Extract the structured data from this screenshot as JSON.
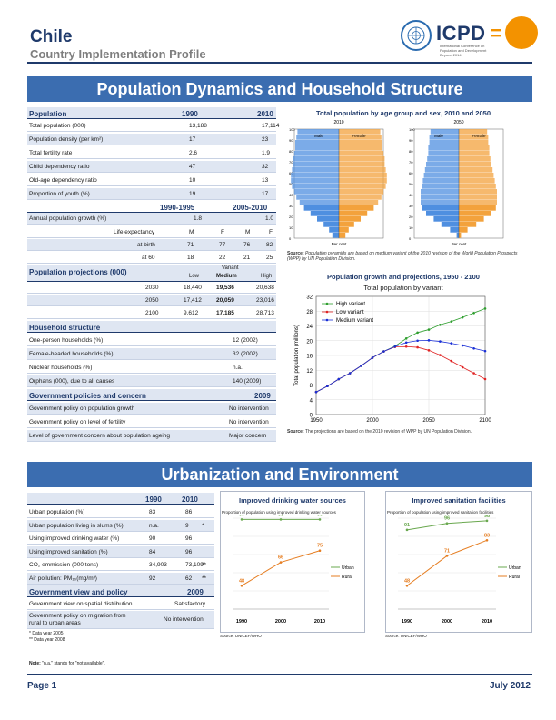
{
  "header": {
    "country": "Chile",
    "subtitle": "Country Implementation Profile",
    "logo_text": "ICPD",
    "logo_sub": "International Conference on Population and Development Beyond 2014"
  },
  "section1": {
    "title": "Population Dynamics and Household Structure"
  },
  "population_table": {
    "header": [
      "Population",
      "1990",
      "2010"
    ],
    "rows": [
      [
        "Total population (000)",
        "13,188",
        "17,114"
      ],
      [
        "Population density (per km²)",
        "17",
        "23"
      ],
      [
        "Total fertility rate",
        "2.6",
        "1.9"
      ],
      [
        "Child dependency ratio",
        "47",
        "32"
      ],
      [
        "Old-age dependency ratio",
        "10",
        "13"
      ],
      [
        "Proportion of youth (%)",
        "19",
        "17"
      ]
    ],
    "period_header": [
      "1990-1995",
      "2005-2010"
    ],
    "growth_row": [
      "Annual population growth (%)",
      "1.8",
      "1.0"
    ],
    "le_header": [
      "Life expectancy",
      "M",
      "F",
      "M",
      "F"
    ],
    "le_birth": [
      "at birth",
      "71",
      "77",
      "76",
      "82"
    ],
    "le_60": [
      "at 60",
      "18",
      "22",
      "21",
      "25"
    ]
  },
  "projections": {
    "title": "Population projections (000)",
    "variant_label": "Variant",
    "cols": [
      "Low",
      "Medium",
      "High"
    ],
    "rows": [
      [
        "2030",
        "18,440",
        "19,536",
        "20,638"
      ],
      [
        "2050",
        "17,412",
        "20,059",
        "23,016"
      ],
      [
        "2100",
        "9,612",
        "17,185",
        "28,713"
      ]
    ]
  },
  "household": {
    "title": "Household structure",
    "rows": [
      [
        "One-person households (%)",
        "12 (2002)"
      ],
      [
        "Female-headed households (%)",
        "32 (2002)"
      ],
      [
        "Nuclear households (%)",
        "n.a."
      ],
      [
        "Orphans (000), due to all causes",
        "140 (2009)"
      ]
    ]
  },
  "policies": {
    "title": "Government policies and concern",
    "year": "2009",
    "rows": [
      [
        "Government policy on population growth",
        "No intervention"
      ],
      [
        "Government policy on level of fertility",
        "No intervention"
      ],
      [
        "Level of government concern about population ageing",
        "Major concern"
      ]
    ]
  },
  "pyramid": {
    "title": "Total population by age group and sex, 2010 and 2050",
    "years": [
      "2010",
      "2050"
    ],
    "male": "Male",
    "female": "Female",
    "yticks": [
      "100",
      "90",
      "80",
      "70",
      "60",
      "50",
      "40",
      "30",
      "20",
      "10",
      "0"
    ],
    "xlabel": "Per cent",
    "source_bold": "Source:",
    "source": "Population pyramids are based on medium variant of the 2010 revision of the World Population Prospects (WPP) by UN Population Division.",
    "male_color": "#4f8fe0",
    "female_color": "#f3a23c",
    "shares_2010": [
      0.6,
      0.9,
      1.4,
      2.0,
      2.6,
      3.2,
      3.6,
      3.9,
      4.1,
      4.3,
      4.4,
      4.4,
      4.3,
      4.2,
      4.2,
      4.1,
      4.0,
      4.0,
      3.9,
      3.8
    ],
    "shares_2050": [
      0.2,
      0.8,
      1.6,
      2.3,
      3.0,
      3.4,
      3.5,
      3.5,
      3.5,
      3.4,
      3.3,
      3.2,
      3.1,
      3.0,
      2.9,
      2.8,
      2.8,
      2.7,
      2.7,
      2.6
    ]
  },
  "growth_chart": {
    "title": "Population growth and projections, 1950 - 2100",
    "subtitle": "Total population by variant",
    "ylabel": "Total population (millions)",
    "source_bold": "Source:",
    "source": "The projections are based on the 2010 revision of WPP by UN Population Division."
  },
  "chart_data": {
    "type": "line",
    "x": [
      1950,
      1960,
      1970,
      1980,
      1990,
      2000,
      2010,
      2020,
      2030,
      2040,
      2050,
      2060,
      2070,
      2080,
      2090,
      2100
    ],
    "series": [
      {
        "name": "High variant",
        "color": "#2e9e2e",
        "values": [
          6.1,
          7.7,
          9.6,
          11.2,
          13.2,
          15.4,
          17.1,
          18.5,
          20.6,
          22.2,
          23.0,
          24.3,
          25.2,
          26.3,
          27.5,
          28.7
        ]
      },
      {
        "name": "Low variant",
        "color": "#e02424",
        "values": [
          6.1,
          7.7,
          9.6,
          11.2,
          13.2,
          15.4,
          17.1,
          18.3,
          18.4,
          18.2,
          17.4,
          16.1,
          14.5,
          12.8,
          11.2,
          9.6
        ]
      },
      {
        "name": "Medium variant",
        "color": "#1a2fd6",
        "values": [
          6.1,
          7.7,
          9.6,
          11.2,
          13.2,
          15.4,
          17.1,
          18.4,
          19.5,
          20.0,
          20.1,
          19.8,
          19.3,
          18.7,
          17.9,
          17.2
        ]
      }
    ],
    "xticks": [
      "1950",
      "2000",
      "2050",
      "2100"
    ],
    "yticks": [
      "0",
      "4",
      "8",
      "12",
      "16",
      "20",
      "24",
      "28",
      "32"
    ],
    "ylim": [
      0,
      32
    ],
    "xlim": [
      1950,
      2100
    ]
  },
  "section2": {
    "title": "Urbanization and Environment"
  },
  "urban_table": {
    "header": [
      "",
      "1990",
      "2010"
    ],
    "rows": [
      [
        "Urban population (%)",
        "83",
        "86",
        ""
      ],
      [
        "Urban population living in slums (%)",
        "n.a.",
        "9",
        "*"
      ],
      [
        "Using improved drinking water (%)",
        "90",
        "96",
        ""
      ],
      [
        "Using improved sanitation (%)",
        "84",
        "96",
        ""
      ],
      [
        "CO₂ emmission (000 tons)",
        "34,903",
        "73,109",
        "**"
      ],
      [
        "Air pollution: PM₁₀(mg/m³)",
        "92",
        "62",
        "**"
      ]
    ],
    "view_title": "Government view and policy",
    "view_year": "2009",
    "view_rows": [
      [
        "Government view on spatial distribution",
        "Satisfactory"
      ],
      [
        "Government policy on migration from rural to urban areas",
        "No intervention"
      ]
    ],
    "notes": [
      "* Data year 2005",
      "** Data year 2008"
    ],
    "note_bold": "Note:",
    "note": "\"n.a.\" stands for \"not available\"."
  },
  "water_chart": {
    "title": "Improved drinking water sources",
    "subtitle": "Proportion of population using improved drinking water sources",
    "source": "Source: UNICEF/WHO",
    "legend": [
      "Urban",
      "Rural"
    ],
    "urban_color": "#6aa84f",
    "rural_color": "#e67e22"
  },
  "sanitation_chart": {
    "title": "Improved sanitation facilities",
    "subtitle": "Proportion of population using improved sanitation facilities",
    "source": "Source: UNICEF/WHO",
    "legend": [
      "Urban",
      "Rural"
    ]
  },
  "water_data": {
    "x": [
      "1990",
      "2000",
      "2010"
    ],
    "urban": [
      99,
      99,
      99
    ],
    "rural": [
      48,
      66,
      75
    ]
  },
  "sanitation_data": {
    "x": [
      "1990",
      "2000",
      "2010"
    ],
    "urban": [
      91,
      96,
      98
    ],
    "rural": [
      48,
      71,
      83
    ]
  },
  "footer": {
    "page": "Page 1",
    "date": "July 2012"
  }
}
